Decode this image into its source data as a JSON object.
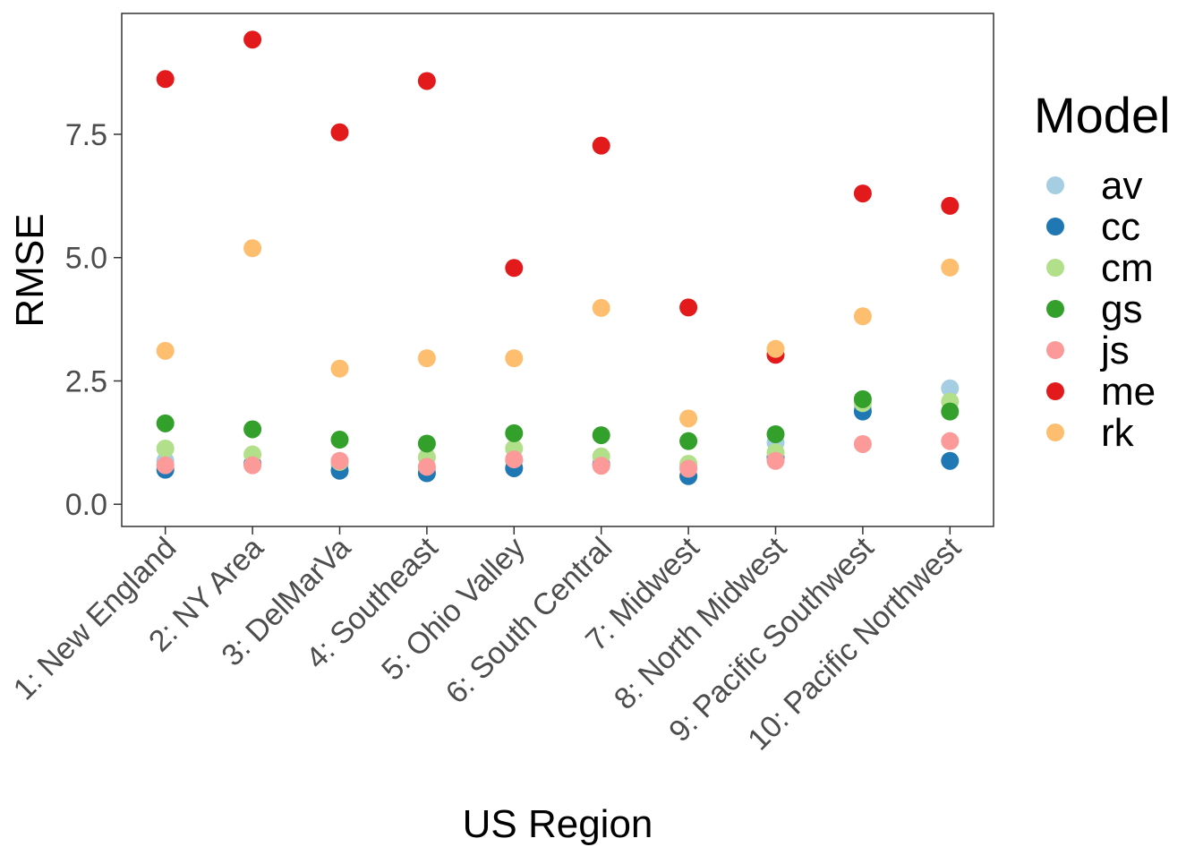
{
  "chart_data": {
    "type": "scatter",
    "title": "",
    "xlabel": "US Region",
    "ylabel": "RMSE",
    "ylim": [
      -0.45,
      9.95
    ],
    "y_ticks": [
      0.0,
      2.5,
      5.0,
      7.5
    ],
    "y_tick_labels": [
      "0.0",
      "2.5",
      "5.0",
      "7.5"
    ],
    "grid": false,
    "legend_position": "right",
    "legend_title": "Model",
    "categories": [
      "1: New England",
      "2: NY Area",
      "3: DelMarVa",
      "4: Southeast",
      "5: Ohio Valley",
      "6: South Central",
      "7: Midwest",
      "8: North Midwest",
      "9: Pacific Southwest",
      "10: Pacific Northwest"
    ],
    "series": [
      {
        "name": "av",
        "color": "#a6cee3",
        "values": [
          0.88,
          0.82,
          0.8,
          0.72,
          0.88,
          0.82,
          0.78,
          1.25,
          1.95,
          2.35
        ]
      },
      {
        "name": "cc",
        "color": "#1f78b4",
        "values": [
          0.7,
          0.82,
          0.68,
          0.63,
          0.73,
          0.8,
          0.57,
          0.95,
          1.88,
          0.88
        ]
      },
      {
        "name": "cm",
        "color": "#b2df8a",
        "values": [
          1.13,
          1.01,
          0.86,
          0.95,
          1.13,
          0.97,
          0.82,
          1.05,
          2.05,
          2.08
        ]
      },
      {
        "name": "gs",
        "color": "#33a02c",
        "values": [
          1.64,
          1.52,
          1.31,
          1.23,
          1.44,
          1.4,
          1.28,
          1.42,
          2.13,
          1.88
        ]
      },
      {
        "name": "js",
        "color": "#fb9a99",
        "values": [
          0.79,
          0.79,
          0.88,
          0.76,
          0.91,
          0.78,
          0.72,
          0.88,
          1.22,
          1.28
        ]
      },
      {
        "name": "me",
        "color": "#e31a1c",
        "values": [
          8.62,
          9.42,
          7.54,
          8.58,
          4.79,
          7.27,
          3.99,
          3.03,
          6.3,
          6.05
        ]
      },
      {
        "name": "rk",
        "color": "#fdbf6f",
        "values": [
          3.11,
          5.19,
          2.75,
          2.96,
          2.96,
          3.98,
          1.74,
          3.15,
          3.81,
          4.8
        ]
      }
    ]
  }
}
